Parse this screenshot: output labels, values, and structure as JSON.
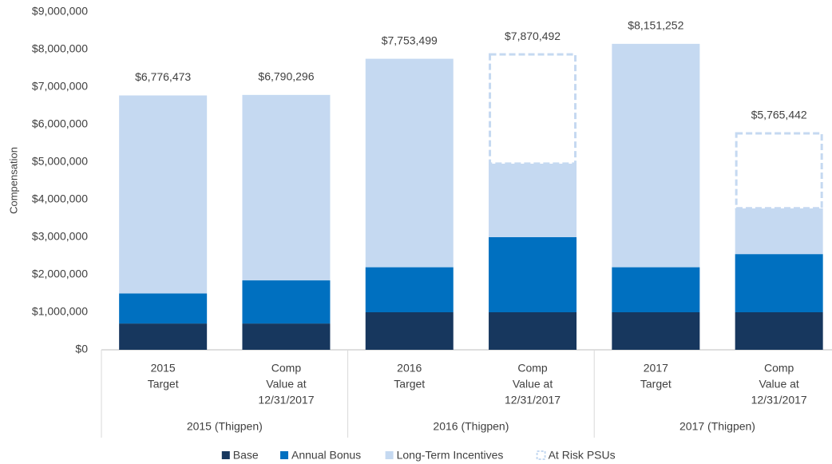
{
  "chart_data": {
    "type": "stacked_bar",
    "y_label": "Compensation",
    "categories": [
      [
        "2015",
        "Target"
      ],
      [
        "Comp",
        "Value at",
        "12/31/2017"
      ],
      [
        "2016",
        "Target"
      ],
      [
        "Comp",
        "Value at",
        "12/31/2017"
      ],
      [
        "2017",
        "Target"
      ],
      [
        "Comp",
        "Value at",
        "12/31/2017"
      ]
    ],
    "groups": [
      "2015 (Thigpen)",
      "2016 (Thigpen)",
      "2017 (Thigpen)"
    ],
    "series": [
      {
        "name": "Base",
        "color": "#17375e",
        "values": [
          700000,
          700000,
          1000000,
          1000000,
          1000000,
          1000000
        ]
      },
      {
        "name": "Annual Bonus",
        "color": "#0070c0",
        "values": [
          800000,
          1150000,
          1200000,
          2000000,
          1200000,
          1550000
        ]
      },
      {
        "name": "Long-Term Incentives",
        "color": "#c5d9f1",
        "values": [
          5276473,
          4940296,
          5553499,
          1960000,
          5951252,
          1220000
        ]
      },
      {
        "name": "At Risk PSUs",
        "color": "#c5d9f1",
        "dashed": true,
        "values": [
          null,
          null,
          null,
          2910492,
          null,
          1995442
        ]
      }
    ],
    "totals": [
      6776473,
      6790296,
      7753499,
      7870492,
      8151252,
      5765442
    ],
    "total_labels": [
      "$6,776,473",
      "$6,790,296",
      "$7,753,499",
      "$7,870,492",
      "$8,151,252",
      "$5,765,442"
    ],
    "ylim": [
      0,
      9000000
    ],
    "yticks": [
      {
        "value": 0,
        "label": "$0"
      },
      {
        "value": 1000000,
        "label": "$1,000,000"
      },
      {
        "value": 2000000,
        "label": "$2,000,000"
      },
      {
        "value": 3000000,
        "label": "$3,000,000"
      },
      {
        "value": 4000000,
        "label": "$4,000,000"
      },
      {
        "value": 5000000,
        "label": "$5,000,000"
      },
      {
        "value": 6000000,
        "label": "$6,000,000"
      },
      {
        "value": 7000000,
        "label": "$7,000,000"
      },
      {
        "value": 8000000,
        "label": "$8,000,000"
      },
      {
        "value": 9000000,
        "label": "$9,000,000"
      }
    ],
    "legend": "bottom"
  }
}
